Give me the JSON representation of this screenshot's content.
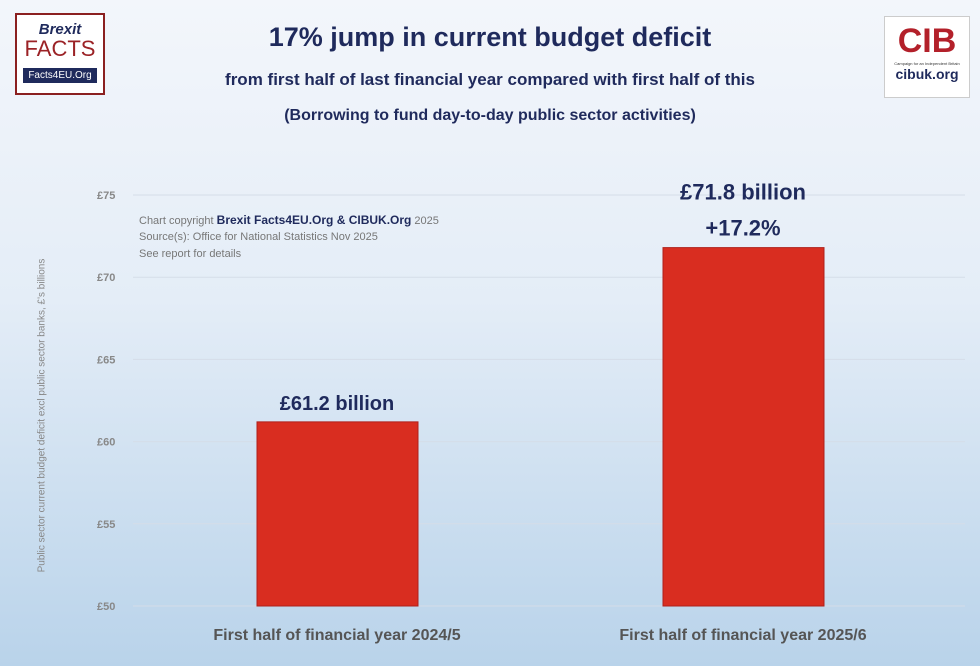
{
  "header": {
    "title": "17% jump in current budget deficit",
    "subtitle": "from first half of last financial year compared with first half of this",
    "subtitle2": "(Borrowing to fund day-to-day public sector activities)"
  },
  "logos": {
    "left": {
      "line1": "Brexit",
      "line2": "FACTS",
      "line3": "Facts4EU.Org"
    },
    "right": {
      "mark": "CIB",
      "tagline": "Campaign for an Independent Britain",
      "url": "cibuk.org"
    }
  },
  "notes": {
    "prefix": "Chart copyright ",
    "bold": "Brexit Facts4EU.Org & CIBUK.Org",
    "suffix": " 2025",
    "source": "Source(s): Office for National Statistics Nov 2025",
    "details": "See report for details"
  },
  "colors": {
    "bar": "#d92d20",
    "text": "#1f2a5c"
  },
  "chart_data": {
    "type": "bar",
    "title": "17% jump in current budget deficit",
    "xlabel": "",
    "ylabel": "Public sector current budget deficit excl public sector banks, £'s billions",
    "categories": [
      "First half of financial year 2024/5",
      "First half of financial year 2025/6"
    ],
    "values": [
      61.2,
      71.8
    ],
    "data_labels": [
      "£61.2 billion",
      "£71.8 billion"
    ],
    "annotations": [
      "+17.2%"
    ],
    "ylim": [
      50,
      75
    ],
    "yticks": [
      "£50",
      "£55",
      "£60",
      "£65",
      "£70",
      "£75"
    ],
    "grid": true
  }
}
